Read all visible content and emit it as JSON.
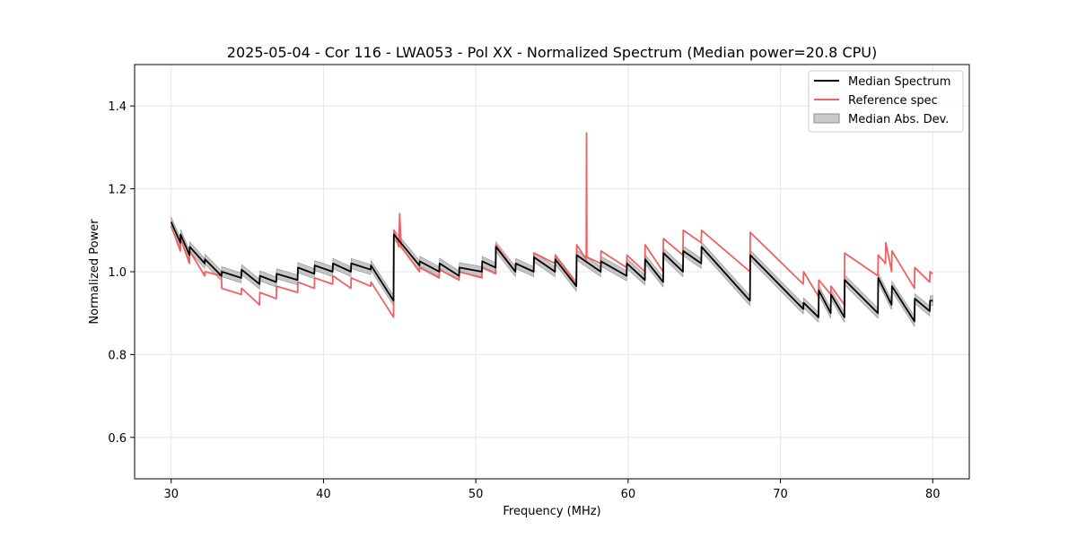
{
  "chart_data": {
    "type": "line",
    "title": "2025-05-04 - Cor 116 - LWA053 - Pol XX - Normalized Spectrum (Median power=20.8 CPU)",
    "xlabel": "Frequency (MHz)",
    "ylabel": "Normalized Power",
    "xlim": [
      27.6,
      82.4
    ],
    "ylim": [
      0.5,
      1.5
    ],
    "xticks": [
      30,
      40,
      50,
      60,
      70,
      80
    ],
    "yticks": [
      0.6,
      0.8,
      1.0,
      1.2,
      1.4
    ],
    "xtick_labels": [
      "30",
      "40",
      "50",
      "60",
      "70",
      "80"
    ],
    "ytick_labels": [
      "0.6",
      "0.8",
      "1.0",
      "1.2",
      "1.4"
    ],
    "grid": true,
    "legend_position": "top-right",
    "colors": {
      "median": "#000000",
      "reference": "#f06060",
      "mad_fill": "#b4b4b4",
      "mad_edge": "#8c8c8c",
      "grid": "#e6e6e6"
    },
    "series": [
      {
        "name": "Median Spectrum",
        "x": [
          30.0,
          30.6,
          30.62,
          31.2,
          31.22,
          32.2,
          32.22,
          33.3,
          33.32,
          34.6,
          34.62,
          35.8,
          35.82,
          36.9,
          36.92,
          38.3,
          38.32,
          39.4,
          39.42,
          40.6,
          40.62,
          41.8,
          41.82,
          43.1,
          43.12,
          44.6,
          44.62,
          46.3,
          46.32,
          47.6,
          47.62,
          48.9,
          48.92,
          50.4,
          50.42,
          51.3,
          51.32,
          52.6,
          52.62,
          53.8,
          53.82,
          55.2,
          55.22,
          56.6,
          56.62,
          58.2,
          58.22,
          59.9,
          59.92,
          61.1,
          61.12,
          62.3,
          62.32,
          63.6,
          63.62,
          64.8,
          64.82,
          68.0,
          68.02,
          71.5,
          71.52,
          72.5,
          72.52,
          73.3,
          73.32,
          74.2,
          74.22,
          76.4,
          76.42,
          77.3,
          77.32,
          78.8,
          78.82,
          79.8,
          79.82,
          80.0
        ],
        "values": [
          1.12,
          1.07,
          1.09,
          1.04,
          1.06,
          1.02,
          1.03,
          0.99,
          1.0,
          0.985,
          1.005,
          0.97,
          0.99,
          0.975,
          0.995,
          0.98,
          1.01,
          0.995,
          1.015,
          1.0,
          1.02,
          1.0,
          1.02,
          1.005,
          1.015,
          0.93,
          1.09,
          1.015,
          1.025,
          1.0,
          1.02,
          0.99,
          1.01,
          1.0,
          1.025,
          1.01,
          1.06,
          1.0,
          1.02,
          1.0,
          1.035,
          1.0,
          1.03,
          0.965,
          1.04,
          1.0,
          1.025,
          0.99,
          1.02,
          0.98,
          1.03,
          0.975,
          1.045,
          1.0,
          1.05,
          1.02,
          1.06,
          0.93,
          1.04,
          0.91,
          0.925,
          0.89,
          0.955,
          0.9,
          0.945,
          0.89,
          0.98,
          0.9,
          0.985,
          0.92,
          0.965,
          0.88,
          0.935,
          0.905,
          0.93,
          0.93
        ]
      },
      {
        "name": "Reference spec",
        "x": [
          30.0,
          30.6,
          30.62,
          31.2,
          31.22,
          32.2,
          32.22,
          33.3,
          33.32,
          34.6,
          34.62,
          35.8,
          35.82,
          36.9,
          36.92,
          38.3,
          38.32,
          39.4,
          39.42,
          40.6,
          40.62,
          41.8,
          41.82,
          43.1,
          43.12,
          44.6,
          44.62,
          44.95,
          45.0,
          45.1,
          46.3,
          46.32,
          47.6,
          47.62,
          48.9,
          48.92,
          50.4,
          50.42,
          51.3,
          51.32,
          52.6,
          52.62,
          53.8,
          53.82,
          55.2,
          55.22,
          56.6,
          56.62,
          57.25,
          57.27,
          57.29,
          57.31,
          58.2,
          58.22,
          59.9,
          59.92,
          61.1,
          61.12,
          62.3,
          62.32,
          63.6,
          63.62,
          64.8,
          64.82,
          68.0,
          68.02,
          71.5,
          71.52,
          72.5,
          72.52,
          73.3,
          73.32,
          74.2,
          74.22,
          76.4,
          76.42,
          76.9,
          76.92,
          77.3,
          77.32,
          78.8,
          78.82,
          79.8,
          79.82,
          80.0
        ],
        "values": [
          1.11,
          1.05,
          1.08,
          1.02,
          1.05,
          0.99,
          1.0,
          0.99,
          0.96,
          0.945,
          0.96,
          0.92,
          0.95,
          0.935,
          0.965,
          0.95,
          0.975,
          0.96,
          0.985,
          0.97,
          0.99,
          0.96,
          0.985,
          0.965,
          0.975,
          0.89,
          1.1,
          1.06,
          1.14,
          1.06,
          1.0,
          1.01,
          0.985,
          1.005,
          0.98,
          1.0,
          0.985,
          1.01,
          0.995,
          1.065,
          1.0,
          1.02,
          1.0,
          1.045,
          1.02,
          1.04,
          0.97,
          1.065,
          1.03,
          1.335,
          1.04,
          1.035,
          1.02,
          1.05,
          1.01,
          1.04,
          1.0,
          1.065,
          1.0,
          1.08,
          1.04,
          1.1,
          1.07,
          1.1,
          1.0,
          1.095,
          0.97,
          1.0,
          0.94,
          0.98,
          0.945,
          0.965,
          0.92,
          1.045,
          0.99,
          1.04,
          1.02,
          1.07,
          1.0,
          1.05,
          0.96,
          1.01,
          0.975,
          1.0,
          0.995
        ]
      }
    ],
    "band": {
      "name": "Median Abs. Dev.",
      "half_width": 0.012
    },
    "legend": [
      "Median Spectrum",
      "Reference spec",
      "Median Abs. Dev."
    ]
  }
}
